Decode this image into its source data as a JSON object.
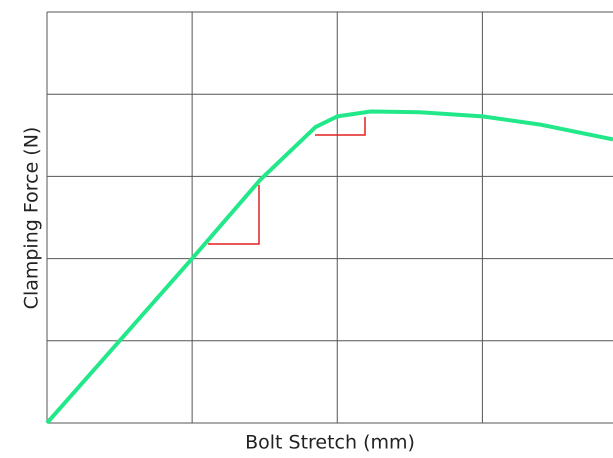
{
  "chart_data": {
    "type": "line",
    "x_label": "Bolt Stretch (mm)",
    "y_label": "Clamping Force (N)",
    "x": [
      0,
      1,
      1.47,
      1.85,
      2,
      2.23,
      2.57,
      3,
      3.4,
      3.9
    ],
    "series": [
      {
        "color": "#22e88a",
        "values": [
          0,
          2,
          2.96,
          3.6,
          3.73,
          3.79,
          3.78,
          3.73,
          3.63,
          3.45
        ]
      }
    ],
    "xlim": [
      0,
      3.9
    ],
    "xticks": [
      0,
      1,
      2,
      3
    ],
    "ylim": [
      0,
      5
    ],
    "yticks": [
      0,
      1,
      2,
      3,
      4,
      5
    ],
    "grid": true
  }
}
